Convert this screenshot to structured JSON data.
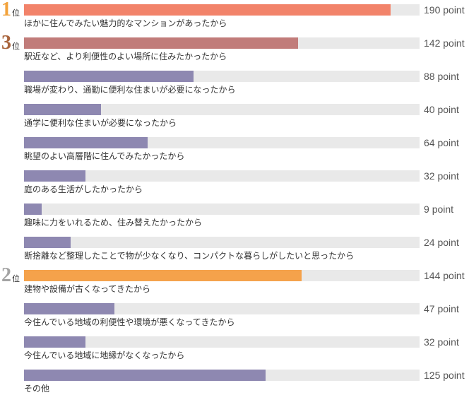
{
  "chart_data": {
    "type": "bar",
    "orientation": "horizontal",
    "xlim": [
      0,
      205
    ],
    "grid": false,
    "unit": "point",
    "rank_suffix": "位",
    "categories": [
      "ほかに住んでみたい魅力的なマンションがあったから",
      "駅近など、より利便性のよい場所に住みたかったから",
      "職場が変わり、通勤に便利な住まいが必要になったから",
      "通学に便利な住まいが必要になったから",
      "眺望のよい高層階に住んでみたかったから",
      "庭のある生活がしたかったから",
      "趣味に力をいれるため、住み替えたかったから",
      "断捨離など整理したことで物が少なくなり、コンパクトな暮らしがしたいと思ったから",
      "建物や設備が古くなってきたから",
      "今住んでいる地域の利便性や環境が悪くなってきたから",
      "今住んでいる地域に地縁がなくなったから",
      "その他"
    ],
    "values": [
      190,
      142,
      88,
      40,
      64,
      32,
      9,
      24,
      144,
      47,
      32,
      125
    ],
    "ranks": [
      "1",
      "3",
      "",
      "",
      "",
      "",
      "",
      "",
      "2",
      "",
      "",
      ""
    ],
    "bar_colors": [
      "#f2836a",
      "#c17c7a",
      "#8e88b1",
      "#8e88b1",
      "#8e88b1",
      "#8e88b1",
      "#8e88b1",
      "#8e88b1",
      "#f5a24b",
      "#8e88b1",
      "#8e88b1",
      "#8e88b1"
    ],
    "track_color": "#e9e9e9",
    "rank_colors": {
      "1": "#f2a33c",
      "2": "#a3a3a3",
      "3": "#a9653d"
    }
  }
}
